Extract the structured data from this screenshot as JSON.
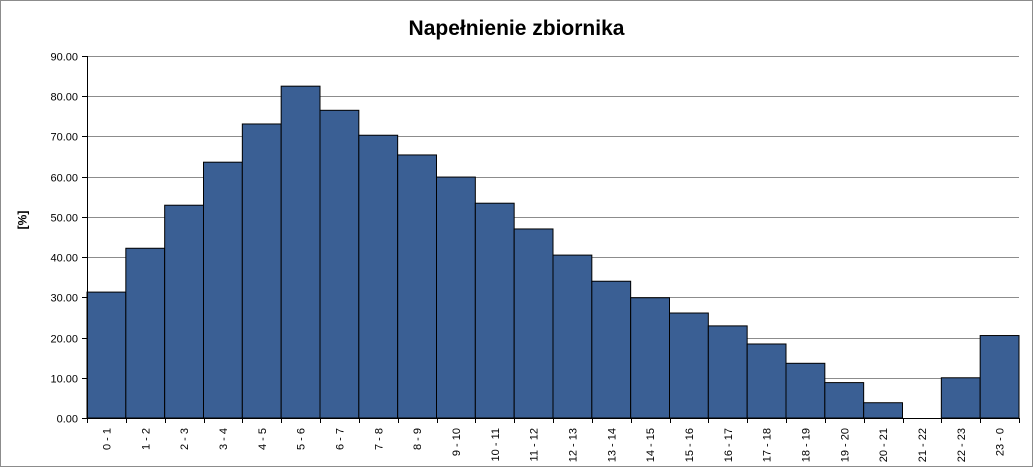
{
  "chart_data": {
    "type": "bar",
    "title": "Napełnienie zbiornika",
    "xlabel": "",
    "ylabel": "[%]",
    "ylim": [
      0,
      90
    ],
    "yticks": [
      "0.00",
      "10.00",
      "20.00",
      "30.00",
      "40.00",
      "50.00",
      "60.00",
      "70.00",
      "80.00",
      "90.00"
    ],
    "grid": true,
    "legend": "none",
    "bar_color": "#3a5f94",
    "bar_edge_color": "#000000",
    "grid_color": "#8c8c8c",
    "categories": [
      "0 - 1",
      "1 - 2",
      "2 - 3",
      "3 - 4",
      "4 - 5",
      "5 - 6",
      "6 - 7",
      "7 - 8",
      "8 - 9",
      "9 - 10",
      "10 - 11",
      "11 - 12",
      "12 - 13",
      "13 - 14",
      "14 - 15",
      "15 - 16",
      "16 - 17",
      "17 - 18",
      "18 - 19",
      "19 - 20",
      "20 - 21",
      "21 - 22",
      "22 - 23",
      "23 - 0"
    ],
    "values": [
      31.3,
      42.2,
      52.9,
      63.6,
      73.1,
      82.5,
      76.5,
      70.3,
      65.4,
      59.9,
      53.4,
      47.0,
      40.5,
      34.0,
      29.9,
      26.1,
      22.9,
      18.4,
      13.6,
      8.8,
      3.8,
      0,
      10.0,
      20.5
    ]
  }
}
